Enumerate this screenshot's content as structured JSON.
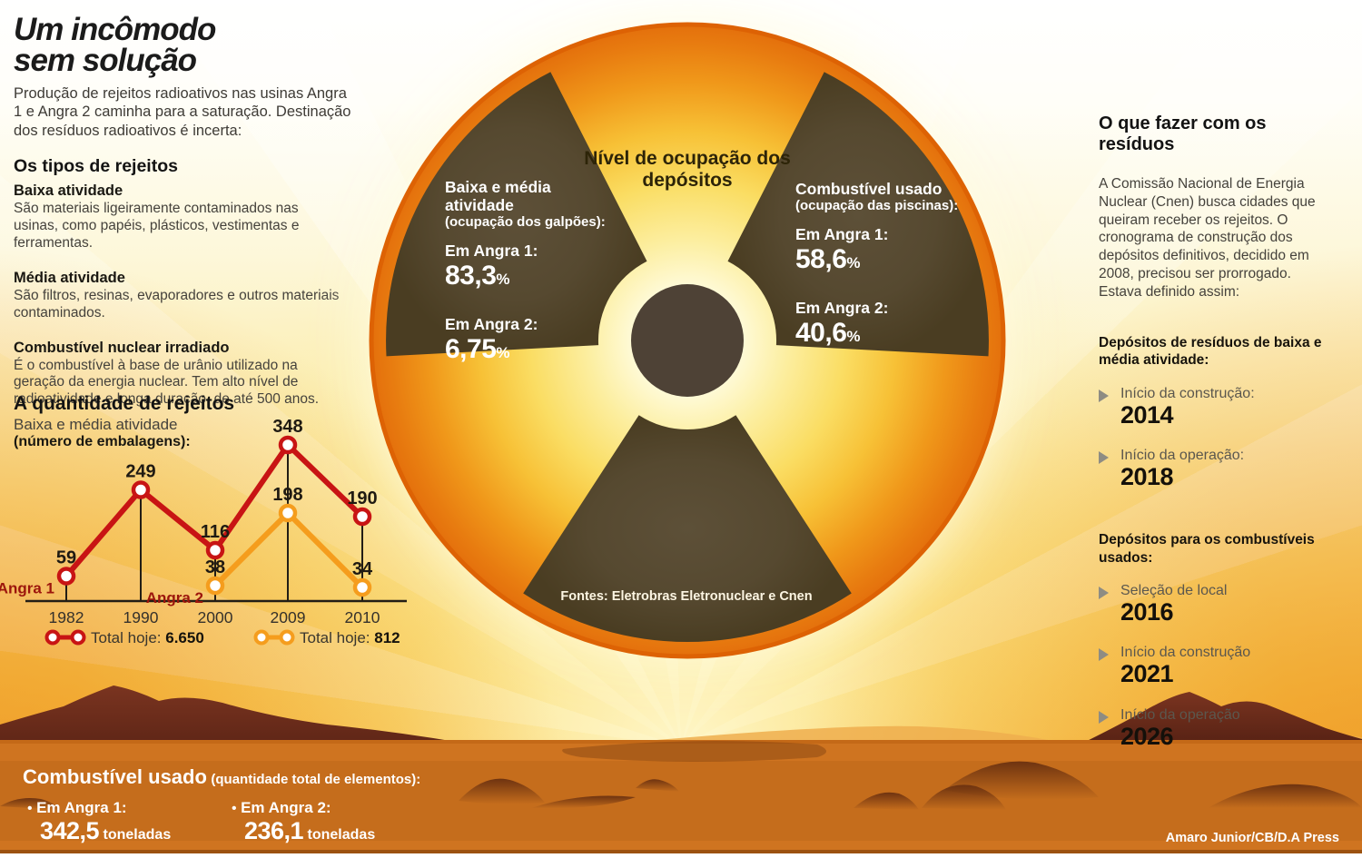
{
  "header": {
    "title_line1": "Um incômodo",
    "title_line2": "sem solução",
    "intro": "Produção de rejeitos radioativos nas usinas Angra 1 e Angra 2 caminha para a saturação. Destinação dos resíduos radioativos é incerta:"
  },
  "types": {
    "heading": "Os tipos de rejeitos",
    "items": [
      {
        "title": "Baixa atividade",
        "text": "São materiais ligeiramente contaminados nas usinas, como papéis, plásticos, vestimentas e ferramentas."
      },
      {
        "title": "Média atividade",
        "text": "São filtros, resinas, evaporadores e outros materiais contaminados."
      },
      {
        "title": "Combustível nuclear irradiado",
        "text": "É o combustível à base de urânio utilizado na geração da energia nuclear. Tem alto nível de radioatividade e longa duração, de até 500 anos."
      }
    ]
  },
  "chart_data": {
    "type": "line",
    "title": "A quantidade de rejeitos",
    "subtitle": "Baixa e média atividade",
    "unit_note": "(número de embalagens):",
    "categories": [
      "1982",
      "1990",
      "2000",
      "2009",
      "2010"
    ],
    "series": [
      {
        "name": "Angra 1",
        "color": "#c81414",
        "values": [
          59,
          249,
          116,
          348,
          190
        ],
        "legend_label": "Total hoje:",
        "legend_value": "6.650"
      },
      {
        "name": "Angra 2",
        "color": "#f59d1d",
        "values": [
          null,
          null,
          38,
          198,
          34
        ],
        "legend_label": "Total hoje:",
        "legend_value": "812"
      }
    ],
    "ylim": [
      0,
      400
    ],
    "grid": false,
    "legend_position": "bottom"
  },
  "occupancy": {
    "title": "Nível de ocupação dos depósitos",
    "left": {
      "heading": "Baixa e média atividade",
      "note": "(ocupação dos galpões):",
      "a1_label": "Em Angra 1:",
      "a1_value": "83,3",
      "a1_pct": "%",
      "a2_label": "Em Angra 2:",
      "a2_value": "6,75",
      "a2_pct": "%"
    },
    "right": {
      "heading": "Combustível usado",
      "note": "(ocupação das piscinas):",
      "a1_label": "Em Angra 1:",
      "a1_value": "58,6",
      "a1_pct": "%",
      "a2_label": "Em Angra 2:",
      "a2_value": "40,6",
      "a2_pct": "%"
    },
    "sources": "Fontes: Eletrobras Eletronuclear e Cnen"
  },
  "sidebar_right": {
    "heading": "O que fazer com os resíduos",
    "paragraph": "A Comissão Nacional de Energia Nuclear (Cnen) busca cidades que queiram receber os rejeitos. O cronograma de construção dos depósitos definitivos, decidido em 2008, precisou ser prorrogado. Estava definido assim:",
    "sections": [
      {
        "title": "Depósitos de resíduos de baixa e média atividade:",
        "items": [
          {
            "label": "Início da construção:",
            "year": "2014"
          },
          {
            "label": "Início da operação:",
            "year": "2018"
          }
        ]
      },
      {
        "title": "Depósitos para os combustíveis usados:",
        "items": [
          {
            "label": "Seleção de local",
            "year": "2016"
          },
          {
            "label": "Início da construção",
            "year": "2021"
          },
          {
            "label": "Início da operação",
            "year": "2026"
          }
        ]
      }
    ]
  },
  "footer": {
    "heading": "Combustível usado",
    "heading_note": "(quantidade total de elementos):",
    "bullet": "•",
    "items": [
      {
        "label": "Em Angra 1:",
        "value": "342,5",
        "unit": "toneladas"
      },
      {
        "label": "Em Angra 2:",
        "value": "236,1",
        "unit": "toneladas"
      }
    ],
    "credit": "Amaro Junior/CB/D.A Press"
  },
  "colors": {
    "angra1_red": "#c81414",
    "angra2_orange": "#f59d1d",
    "wedge_brown": "#52452b",
    "hub_brown": "#4e4236",
    "rim_orange": "#e4700c",
    "ground_orange": "#cf7420",
    "mountain_maroon": "#5e2316"
  }
}
